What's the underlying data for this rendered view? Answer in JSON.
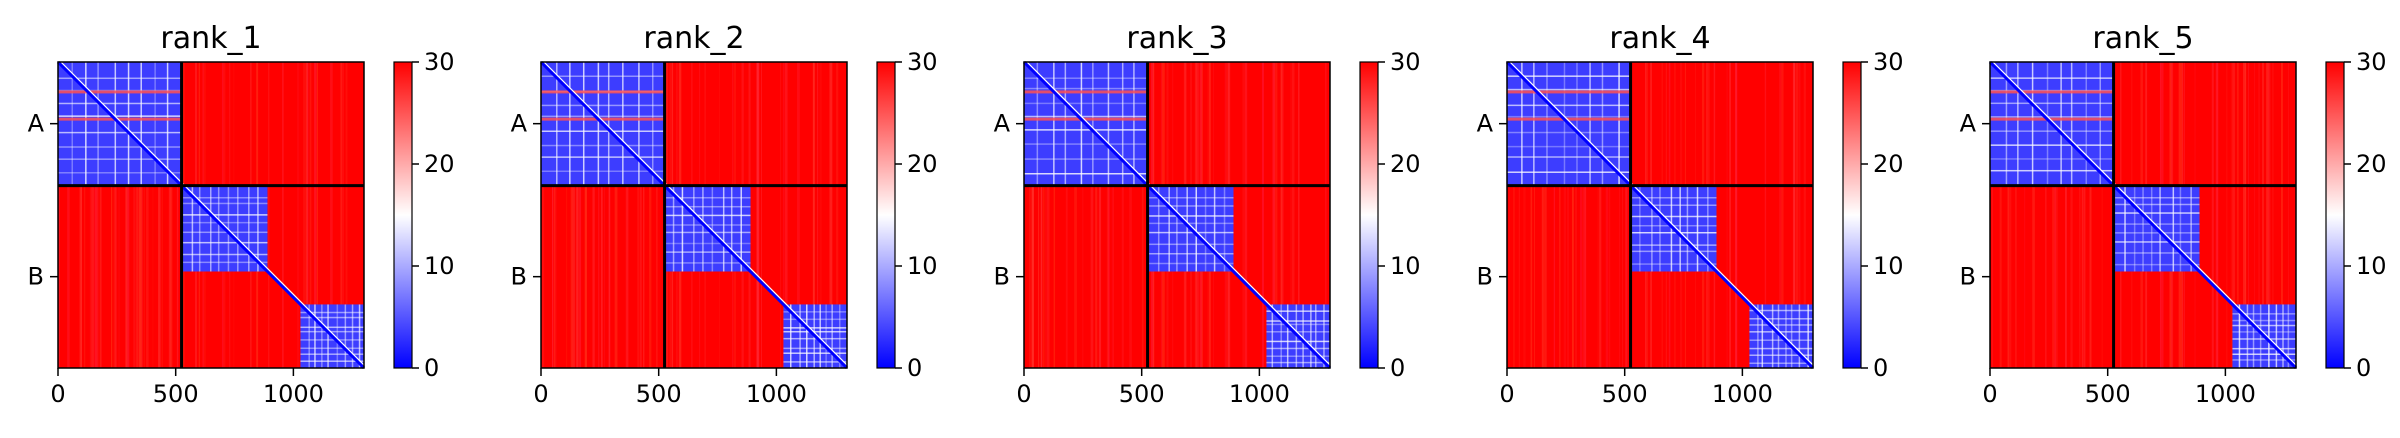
{
  "chart_data": {
    "type": "heatmap",
    "colormap": {
      "name": "bwr",
      "low": "#0000ff",
      "mid": "#ffffff",
      "high": "#ff0000"
    },
    "value_range": [
      0,
      30
    ],
    "x_range": [
      0,
      1300
    ],
    "y_range": [
      0,
      1300
    ],
    "chain_boundary": 525,
    "domains": [
      [
        0,
        525
      ],
      [
        525,
        890
      ],
      [
        1030,
        1300
      ]
    ],
    "panels": [
      {
        "title": "rank_1"
      },
      {
        "title": "rank_2"
      },
      {
        "title": "rank_3"
      },
      {
        "title": "rank_4"
      },
      {
        "title": "rank_5"
      }
    ],
    "x_ticks": [
      {
        "value": 0,
        "label": "0"
      },
      {
        "value": 500,
        "label": "500"
      },
      {
        "value": 1000,
        "label": "1000"
      }
    ],
    "y_ticks": [
      {
        "value": 262,
        "label": "A"
      },
      {
        "value": 912,
        "label": "B"
      }
    ],
    "colorbar_ticks": [
      {
        "value": 0,
        "label": "0"
      },
      {
        "value": 10,
        "label": "10"
      },
      {
        "value": 20,
        "label": "20"
      },
      {
        "value": 30,
        "label": "30"
      }
    ],
    "grid": false,
    "legend": "colorbar-right"
  }
}
